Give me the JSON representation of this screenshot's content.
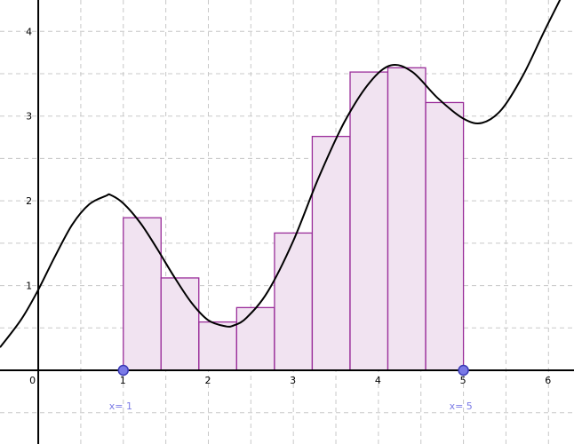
{
  "colors": {
    "grid": "#c8c8c8",
    "axis": "#000000",
    "curve": "#000000",
    "bar_fill": "#f1e3f1",
    "bar_stroke": "#9a2e9a",
    "point_fill": "#7a7ae6",
    "point_stroke": "#3a3ab4",
    "point_label": "#7a7ae6"
  },
  "chart_data": {
    "type": "bar",
    "title": "",
    "xlabel": "",
    "ylabel": "",
    "xlim": [
      -0.45,
      6.3
    ],
    "ylim": [
      -0.87,
      4.37
    ],
    "grid": true,
    "x_ticks": [
      0,
      1,
      2,
      3,
      4,
      5,
      6
    ],
    "x_tick_labels": [
      "0",
      "1",
      "2",
      "3",
      "4",
      "5",
      "6"
    ],
    "y_ticks": [
      1,
      2,
      3,
      4
    ],
    "y_tick_labels": [
      "1",
      "2",
      "3",
      "4"
    ],
    "bars": {
      "left_edges": [
        1.0,
        1.444,
        1.889,
        2.333,
        2.778,
        3.222,
        3.667,
        4.111,
        4.556
      ],
      "width": 0.444,
      "heights": [
        1.8,
        1.09,
        0.57,
        0.74,
        1.62,
        2.76,
        3.52,
        3.57,
        3.16
      ]
    },
    "curve": {
      "x": [
        -0.45,
        -0.2,
        0.0,
        0.2,
        0.4,
        0.6,
        0.8,
        0.85,
        1.0,
        1.2,
        1.4,
        1.6,
        1.8,
        2.0,
        2.2,
        2.3,
        2.45,
        2.7,
        3.0,
        3.3,
        3.6,
        3.9,
        4.15,
        4.4,
        4.7,
        5.0,
        5.22,
        5.45,
        5.7,
        5.95,
        6.15
      ],
      "y": [
        0.27,
        0.6,
        0.95,
        1.35,
        1.72,
        1.96,
        2.06,
        2.07,
        1.97,
        1.74,
        1.43,
        1.1,
        0.8,
        0.59,
        0.52,
        0.53,
        0.62,
        0.93,
        1.53,
        2.28,
        2.93,
        3.4,
        3.6,
        3.52,
        3.21,
        2.97,
        2.92,
        3.08,
        3.48,
        4.0,
        4.4
      ]
    },
    "points": [
      {
        "x": 1,
        "y": 0,
        "label": "x= 1"
      },
      {
        "x": 5,
        "y": 0,
        "label": "x= 5"
      }
    ]
  }
}
